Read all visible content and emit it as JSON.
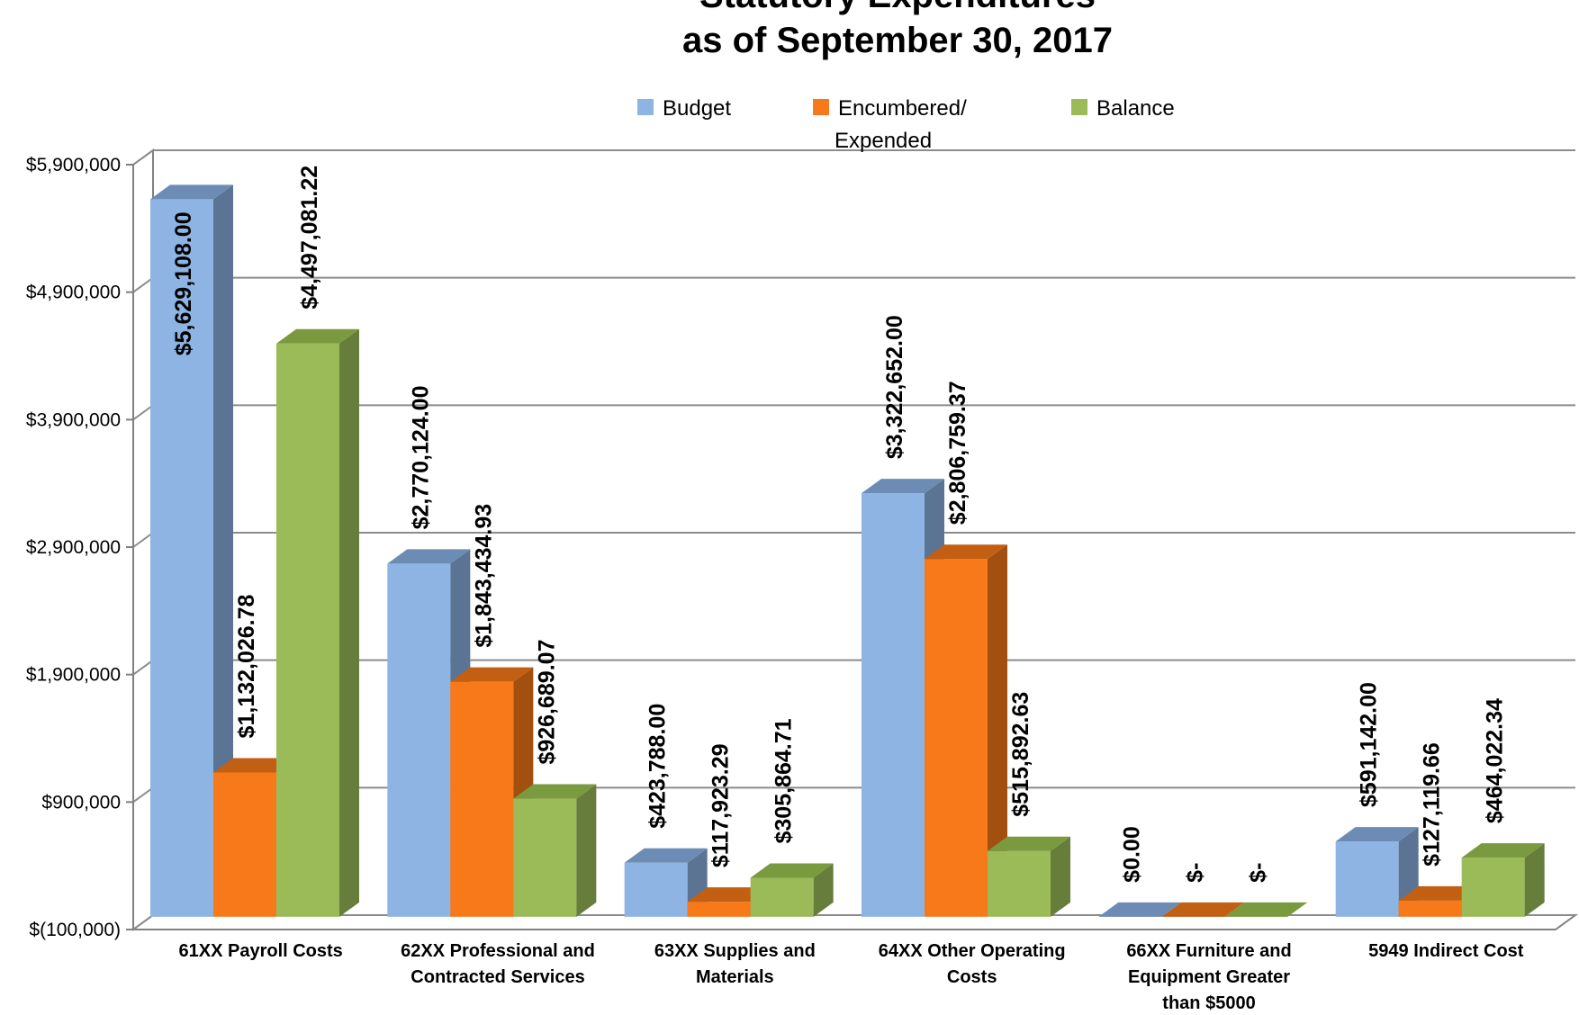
{
  "chart_data": {
    "type": "bar",
    "title_lines": [
      "Statutory Expenditures",
      "as of September 30, 2017"
    ],
    "categories": [
      [
        "61XX Payroll Costs"
      ],
      [
        "62XX Professional and",
        "Contracted Services"
      ],
      [
        "63XX Supplies and",
        "Materials"
      ],
      [
        "64XX Other Operating",
        "Costs"
      ],
      [
        "66XX Furniture and",
        "Equipment Greater",
        "than $5000"
      ],
      [
        "5949 Indirect Cost"
      ]
    ],
    "series": [
      {
        "name": "Budget",
        "color": "#8DB4E2",
        "side_color": "#5B7494",
        "top_color": "#6C8CB5",
        "values": [
          5629108.0,
          2770124.0,
          423788.0,
          3322652.0,
          0.0,
          591142.0
        ],
        "labels": [
          "$5,629,108.00",
          "$2,770,124.00",
          "$423,788.00",
          "$3,322,652.00",
          "$0.00",
          "$591,142.00"
        ]
      },
      {
        "name": "Encumbered/ Expended",
        "name_lines": [
          "Encumbered/",
          "Expended"
        ],
        "color": "#F7791A",
        "side_color": "#A24F10",
        "top_color": "#C25F12",
        "values": [
          1132026.78,
          1843434.93,
          117923.29,
          2806759.37,
          0,
          127119.66
        ],
        "labels": [
          "$1,132,026.78",
          "$1,843,434.93",
          "$117,923.29",
          "$2,806,759.37",
          "$-",
          "$127,119.66"
        ]
      },
      {
        "name": "Balance",
        "color": "#9BBB59",
        "side_color": "#677D3B",
        "top_color": "#7A9A3F",
        "values": [
          4497081.22,
          926689.07,
          305864.71,
          515892.63,
          0,
          464022.34
        ],
        "labels": [
          "$4,497,081.22",
          "$926,689.07",
          "$305,864.71",
          "$515,892.63",
          "$-",
          "$464,022.34"
        ]
      }
    ],
    "yticks": [
      "$(100,000)",
      "$900,000",
      "$1,900,000",
      "$2,900,000",
      "$3,900,000",
      "$4,900,000",
      "$5,900,000"
    ],
    "ytick_values": [
      -100000,
      900000,
      1900000,
      2900000,
      3900000,
      4900000,
      5900000
    ],
    "ylim": [
      -100000,
      5900000
    ],
    "grid": true,
    "legend_position": "top-center",
    "style": "3d-clustered-column"
  }
}
